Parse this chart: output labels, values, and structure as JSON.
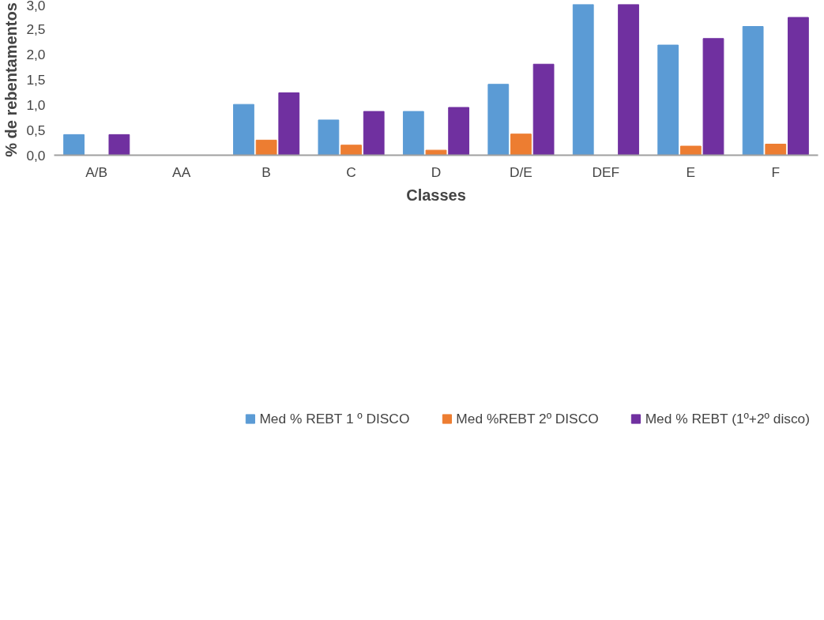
{
  "chart_data": {
    "type": "bar",
    "xlabel": "Classes",
    "ylabel": "% de rebentamentos",
    "categories": [
      "A/B",
      "AA",
      "B",
      "C",
      "D",
      "D/E",
      "DEF",
      "E",
      "F"
    ],
    "series": [
      {
        "name": "Med % REBT 1 º DISCO",
        "color": "#5b9bd5",
        "values": [
          0.41,
          0,
          1.01,
          0.7,
          0.87,
          1.41,
          3.0,
          2.19,
          2.56
        ]
      },
      {
        "name": "Med %REBT 2º DISCO",
        "color": "#ed7d31",
        "values": [
          0,
          0,
          0.3,
          0.2,
          0.1,
          0.42,
          0,
          0.18,
          0.22
        ]
      },
      {
        "name": "Med % REBT (1º+2º disco)",
        "color": "#7030a0",
        "values": [
          0.41,
          0,
          1.24,
          0.87,
          0.95,
          1.81,
          3.0,
          2.32,
          2.74
        ]
      }
    ],
    "ylim": [
      0,
      3.0
    ],
    "yticks": [
      {
        "value": 0,
        "label": "0,0"
      },
      {
        "value": 0.5,
        "label": "0,5"
      },
      {
        "value": 1.0,
        "label": "1,0"
      },
      {
        "value": 1.5,
        "label": "1,5"
      },
      {
        "value": 2.0,
        "label": "2,0"
      },
      {
        "value": 2.5,
        "label": "2,5"
      },
      {
        "value": 3.0,
        "label": "3,0"
      }
    ],
    "grid": false,
    "legend": "bottom"
  }
}
